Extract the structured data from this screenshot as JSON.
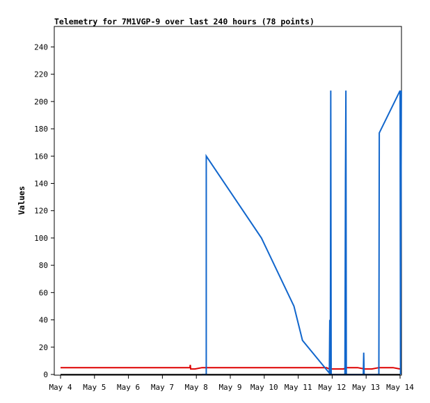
{
  "chart_data": {
    "type": "line",
    "title": "Telemetry for 7M1VGP-9 over last 240 hours (78 points)",
    "xlabel": "",
    "ylabel": "Values",
    "x_ticks": [
      "May 4",
      "May 5",
      "May 6",
      "May 7",
      "May 8",
      "May 9",
      "May 10",
      "May 11",
      "May 12",
      "May 13",
      "May 14"
    ],
    "xlim": [
      0,
      240
    ],
    "x_unit": "hours",
    "y_ticks": [
      0,
      20,
      40,
      60,
      80,
      100,
      120,
      140,
      160,
      180,
      200,
      220,
      240
    ],
    "ylim": [
      0,
      255
    ],
    "grid": false,
    "series": [
      {
        "color": "#dd0000",
        "x": [
          0,
          25,
          50,
          75,
          91.5,
          91.7,
          92.0,
          95,
          100,
          125,
          150,
          170,
          188,
          190,
          200,
          202,
          210,
          215,
          220,
          225,
          230,
          235,
          240
        ],
        "y": [
          5,
          5,
          5,
          5,
          5,
          7,
          4,
          4,
          5,
          5,
          5,
          5,
          5,
          4,
          4,
          5,
          5,
          4,
          4,
          5,
          5,
          5,
          4
        ]
      },
      {
        "color": "#1166cc",
        "x": [
          100,
          103,
          103.01,
          142,
          165,
          171,
          190,
          190.3,
          190.7,
          191,
          191.3,
          201,
          201.4,
          201.7,
          202,
          214,
          214.3,
          214.6,
          225,
          225.3,
          240,
          240.3,
          240.6,
          240.9
        ],
        "y": [
          0,
          0,
          160,
          100,
          50,
          25,
          1,
          40,
          0,
          208,
          0,
          0,
          144,
          208,
          0,
          0,
          16,
          0,
          0,
          177,
          208,
          0,
          104,
          208
        ]
      },
      {
        "color": "#000000",
        "x": [
          0,
          240
        ],
        "y": [
          0,
          0
        ]
      }
    ]
  }
}
